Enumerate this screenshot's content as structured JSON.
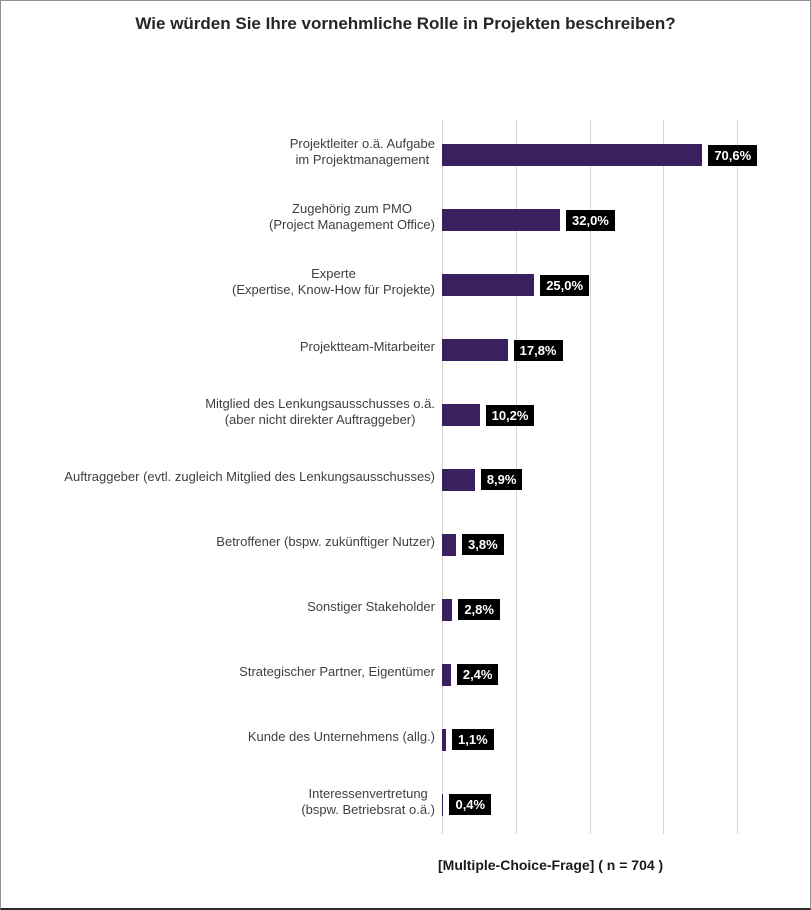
{
  "chart_data": {
    "type": "bar",
    "orientation": "horizontal",
    "title": "Wie würden Sie Ihre vornehmliche Rolle in Projekten beschreiben?",
    "categories": [
      "Projektleiter o.ä. Aufgabe\nim Projektmanagement",
      "Zugehörig zum PMO\n(Project Management Office)",
      "Experte\n(Expertise, Know-How für Projekte)",
      "Projektteam-Mitarbeiter",
      "Mitglied des Lenkungsausschusses o.ä.\n(aber nicht direkter Auftraggeber)",
      "Auftraggeber (evtl. zugleich Mitglied des Lenkungsausschusses)",
      "Betroffener (bspw. zukünftiger Nutzer)",
      "Sonstiger Stakeholder",
      "Strategischer Partner, Eigentümer",
      "Kunde des Unternehmens (allg.)",
      "Interessenvertretung\n(bspw. Betriebsrat o.ä.)"
    ],
    "values": [
      70.6,
      32.0,
      25.0,
      17.8,
      10.2,
      8.9,
      3.8,
      2.8,
      2.4,
      1.1,
      0.4
    ],
    "value_labels": [
      "70,6%",
      "32,0%",
      "25,0%",
      "17,8%",
      "10,2%",
      "8,9%",
      "3,8%",
      "2,8%",
      "2,4%",
      "1,1%",
      "0,4%"
    ],
    "xlabel": "",
    "ylabel": "",
    "xlim": [
      0,
      80
    ],
    "gridline_step": 20,
    "grid": "vertical-lines-only",
    "legend": "none",
    "bar_color": "#3b2060",
    "grid_color": "#d3d3d3",
    "value_badge_bg": "#000000",
    "value_badge_fg": "#ffffff",
    "footnote": "[Multiple-Choice-Frage] ( n = 704 )"
  }
}
